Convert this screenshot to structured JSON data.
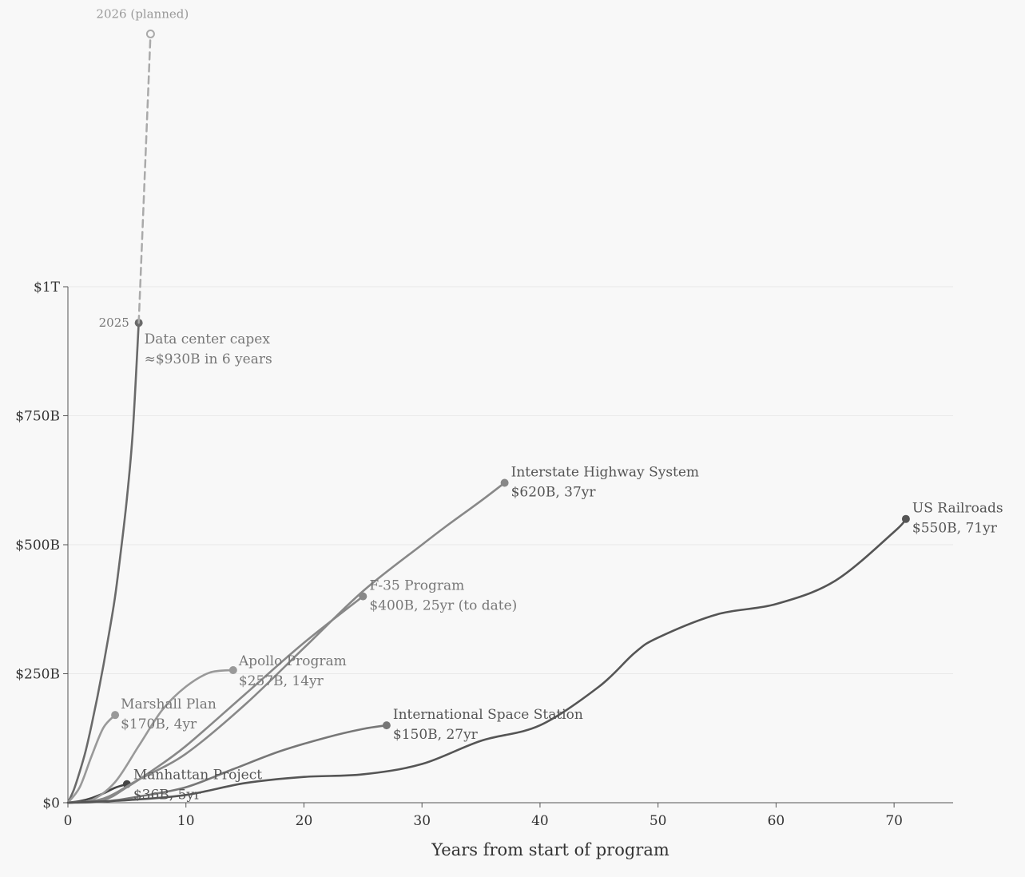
{
  "chart_data": {
    "type": "line",
    "title": "",
    "xlabel": "Years from start of program",
    "ylabel": "",
    "xlim": [
      0,
      75
    ],
    "ylim": [
      0,
      1000
    ],
    "y_unit": "billion USD",
    "x_ticks": [
      0,
      10,
      20,
      30,
      40,
      50,
      60,
      70
    ],
    "x_tick_labels": [
      "0",
      "10",
      "20",
      "30",
      "40",
      "50",
      "60",
      "70"
    ],
    "y_ticks": [
      0,
      250,
      500,
      750,
      1000
    ],
    "y_tick_labels": [
      "$0",
      "$250B",
      "$500B",
      "$750B",
      "$1T"
    ],
    "grid": "horizontal",
    "series": [
      {
        "name": "Data center capex",
        "label_lines": [
          "Data center capex",
          "≈$930B in 6 years"
        ],
        "color": "#6a6a6a",
        "x": [
          0,
          0.5,
          1,
          1.5,
          2,
          2.5,
          3,
          3.5,
          4,
          4.5,
          5,
          5.5,
          6
        ],
        "y": [
          0,
          25,
          60,
          100,
          150,
          205,
          265,
          330,
          400,
          490,
          590,
          720,
          930
        ],
        "end_marker": true
      },
      {
        "name": "Data center capex (planned)",
        "color": "#aaaaaa",
        "dashed": true,
        "x": [
          6,
          7
        ],
        "y": [
          930,
          1490
        ],
        "end_marker": "hollow"
      },
      {
        "name": "Marshall Plan",
        "label_lines": [
          "Marshall Plan",
          "$170B, 4yr"
        ],
        "color": "#999999",
        "x": [
          0,
          1,
          2,
          3,
          4
        ],
        "y": [
          0,
          30,
          90,
          145,
          170
        ],
        "end_marker": true
      },
      {
        "name": "Manhattan Project",
        "label_lines": [
          "Manhattan Project",
          "$36B, 5yr"
        ],
        "color": "#444444",
        "x": [
          0,
          1,
          2,
          3,
          4,
          5
        ],
        "y": [
          0,
          3,
          9,
          18,
          29,
          36
        ],
        "end_marker": true
      },
      {
        "name": "Apollo Program",
        "label_lines": [
          "Apollo Program",
          "$257B, 14yr"
        ],
        "color": "#999999",
        "x": [
          0,
          2,
          4,
          6,
          8,
          10,
          12,
          14
        ],
        "y": [
          0,
          5,
          40,
          110,
          180,
          225,
          252,
          257
        ],
        "end_marker": true
      },
      {
        "name": "F-35 Program",
        "label_lines": [
          "F-35 Program",
          "$400B, 25yr (to date)"
        ],
        "color": "#888888",
        "x": [
          0,
          3,
          5,
          7,
          10,
          15,
          20,
          25
        ],
        "y": [
          0,
          5,
          30,
          60,
          110,
          210,
          310,
          400
        ],
        "end_marker": true
      },
      {
        "name": "Interstate Highway System",
        "label_lines": [
          "Interstate Highway System",
          "$620B, 37yr"
        ],
        "color": "#888888",
        "x": [
          0,
          3,
          6,
          10,
          15,
          20,
          25,
          30,
          32,
          35,
          37
        ],
        "y": [
          0,
          8,
          45,
          95,
          190,
          300,
          410,
          500,
          535,
          585,
          620
        ],
        "end_marker": true
      },
      {
        "name": "International Space Station",
        "label_lines": [
          "International Space Station",
          "$150B, 27yr"
        ],
        "color": "#777777",
        "x": [
          0,
          3,
          6,
          10,
          14,
          18,
          22,
          25,
          27
        ],
        "y": [
          0,
          2,
          12,
          30,
          65,
          100,
          127,
          143,
          150
        ],
        "end_marker": true
      },
      {
        "name": "US Railroads",
        "label_lines": [
          "US Railroads",
          "$550B, 71yr"
        ],
        "color": "#555555",
        "x": [
          0,
          5,
          10,
          15,
          20,
          25,
          30,
          35,
          40,
          45,
          48,
          50,
          55,
          60,
          65,
          70,
          71
        ],
        "y": [
          0,
          5,
          15,
          38,
          50,
          55,
          75,
          120,
          150,
          225,
          290,
          320,
          365,
          385,
          430,
          525,
          550
        ],
        "end_marker": true
      }
    ],
    "annotations": [
      {
        "text": "2025",
        "x": 6,
        "y": 930
      },
      {
        "text": "2026 (planned)",
        "x": 7,
        "y": 1490
      }
    ]
  }
}
